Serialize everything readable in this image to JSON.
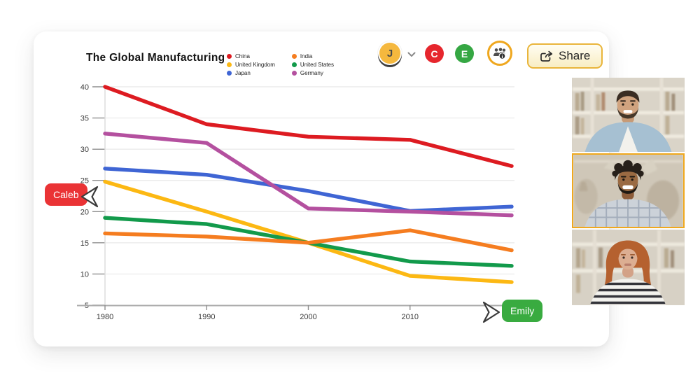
{
  "header": {
    "title": "The Global Manufacturing",
    "avatars": [
      {
        "initial": "J",
        "color": "#f5b83e",
        "text_color": "#4a4a4a"
      },
      {
        "initial": "C",
        "color": "#e6262d",
        "text_color": "#ffffff"
      },
      {
        "initial": "E",
        "color": "#35a743",
        "text_color": "#ffffff"
      }
    ],
    "share_label": "Share"
  },
  "cursors": [
    {
      "name": "Caleb",
      "color": "#ea3335"
    },
    {
      "name": "Emily",
      "color": "#39ab40"
    }
  ],
  "video_call": {
    "tile_count": 3,
    "active_tile_index": 1
  },
  "chart_data": {
    "type": "line",
    "title": "The Global Manufacturing",
    "x": [
      1980,
      1990,
      2000,
      2010,
      2020
    ],
    "x_tick_labels": [
      "1980",
      "1990",
      "2000",
      "2010"
    ],
    "yticks": [
      5,
      10,
      15,
      20,
      25,
      30,
      35,
      40
    ],
    "ylim": [
      5,
      40
    ],
    "grid": true,
    "legend_position": "top",
    "series": [
      {
        "name": "China",
        "color": "#dd1b21",
        "values": [
          40,
          34,
          32,
          31.5,
          27.3
        ]
      },
      {
        "name": "United Kingdom",
        "color": "#fcb813",
        "values": [
          24.8,
          20,
          15,
          9.7,
          8.7
        ]
      },
      {
        "name": "Japan",
        "color": "#3f65d4",
        "values": [
          26.9,
          25.9,
          23.3,
          20.1,
          20.8
        ]
      },
      {
        "name": "India",
        "color": "#f57d20",
        "values": [
          16.5,
          16,
          15,
          17,
          13.8
        ]
      },
      {
        "name": "United States",
        "color": "#129a4b",
        "values": [
          19,
          18,
          15,
          12,
          11.3
        ]
      },
      {
        "name": "Germany",
        "color": "#b4509f",
        "values": [
          32.5,
          31,
          20.5,
          20,
          19.4
        ]
      }
    ]
  }
}
